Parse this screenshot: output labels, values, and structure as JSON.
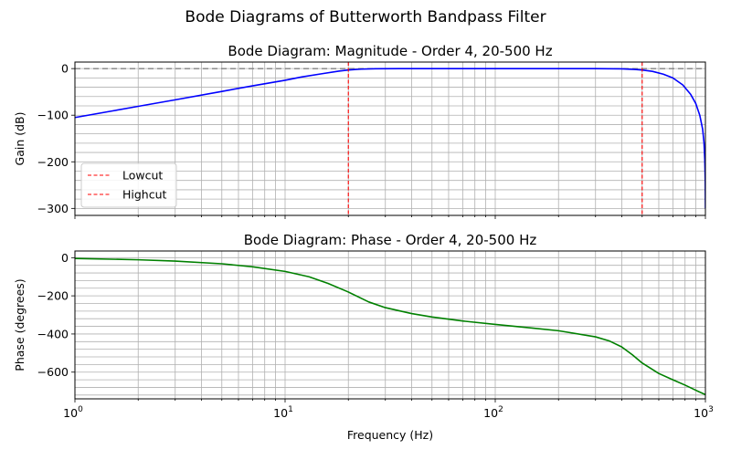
{
  "figure": {
    "suptitle": "Bode Diagrams of Butterworth Bandpass Filter"
  },
  "chart_data": [
    {
      "type": "line",
      "title": "Bode Diagram: Magnitude - Order 4, 20-500 Hz",
      "xlabel": "",
      "ylabel": "Gain (dB)",
      "xscale": "log",
      "xlim": [
        1,
        1000
      ],
      "ylim": [
        -315,
        14
      ],
      "yticks": [
        0,
        -100,
        -200,
        -300
      ],
      "grid": true,
      "legend_position": "lower-left",
      "series": [
        {
          "name": "",
          "color": "#0000ff",
          "x": [
            1,
            1.5,
            2,
            3,
            5,
            7,
            10,
            12,
            15,
            18,
            20,
            23,
            27,
            35,
            50,
            100,
            200,
            300,
            400,
            460,
            500,
            560,
            630,
            700,
            780,
            850,
            900,
            940,
            970,
            985,
            993,
            998,
            1000
          ],
          "y": [
            -105,
            -91,
            -81,
            -67,
            -49,
            -37,
            -25,
            -18,
            -11,
            -5.5,
            -3,
            -1.2,
            -0.4,
            -0.05,
            0,
            0,
            0,
            -0.1,
            -0.6,
            -1.7,
            -3,
            -6,
            -12,
            -20,
            -35,
            -55,
            -75,
            -100,
            -130,
            -160,
            -195,
            -240,
            -300
          ]
        }
      ],
      "hlines": [
        {
          "y": 0,
          "color": "#808080",
          "style": "dashed"
        }
      ],
      "vlines": [
        {
          "name": "Lowcut",
          "x": 20,
          "color": "#ff0000",
          "style": "dashed"
        },
        {
          "name": "Highcut",
          "x": 500,
          "color": "#ff0000",
          "style": "dashed"
        }
      ]
    },
    {
      "type": "line",
      "title": "Bode Diagram: Phase - Order 4, 20-500 Hz",
      "xlabel": "Frequency (Hz)",
      "ylabel": "Phase (degrees)",
      "xscale": "log",
      "xlim": [
        1,
        1000
      ],
      "ylim": [
        -740,
        35
      ],
      "yticks": [
        0,
        -200,
        -400,
        -600
      ],
      "xticks": [
        1,
        10,
        100,
        1000
      ],
      "xtick_labels": [
        {
          "base": "10",
          "exp": "0"
        },
        {
          "base": "10",
          "exp": "1"
        },
        {
          "base": "10",
          "exp": "2"
        },
        {
          "base": "10",
          "exp": "3"
        }
      ],
      "grid": true,
      "series": [
        {
          "name": "",
          "color": "#008000",
          "x": [
            1,
            2,
            3,
            5,
            7,
            10,
            13,
            16,
            20,
            25,
            30,
            40,
            50,
            70,
            100,
            150,
            200,
            300,
            350,
            400,
            450,
            500,
            600,
            700,
            800,
            900,
            1000
          ],
          "y": [
            -4,
            -11,
            -18,
            -32,
            -48,
            -72,
            -100,
            -135,
            -180,
            -232,
            -262,
            -293,
            -311,
            -332,
            -350,
            -369,
            -383,
            -415,
            -437,
            -468,
            -510,
            -552,
            -607,
            -640,
            -668,
            -695,
            -718
          ]
        }
      ]
    }
  ]
}
